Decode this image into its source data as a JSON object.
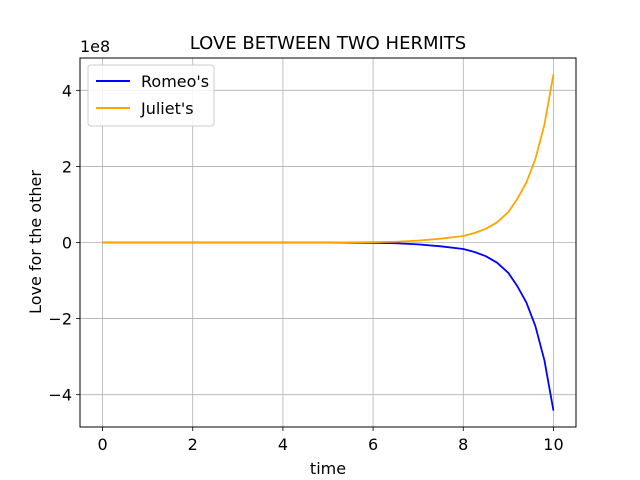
{
  "chart_data": {
    "type": "line",
    "title": "LOVE BETWEEN TWO HERMITS",
    "xlabel": "time",
    "ylabel": "Love for the other",
    "offset_label": "1e8",
    "xlim": [
      -0.5,
      10.5
    ],
    "ylim": [
      -4.85,
      4.85
    ],
    "xticks": [
      0,
      2,
      4,
      6,
      8,
      10
    ],
    "yticks": [
      -4,
      -2,
      0,
      2,
      4
    ],
    "grid": true,
    "legend_position": "top-left",
    "x": [
      0,
      1,
      2,
      3,
      4,
      5,
      6,
      6.5,
      7,
      7.5,
      8,
      8.25,
      8.5,
      8.75,
      9,
      9.2,
      9.4,
      9.6,
      9.8,
      10
    ],
    "series": [
      {
        "name": "Romeo's",
        "color": "#0000ff",
        "values": [
          0,
          -0.0,
          -0.0,
          -0.0,
          -0.0,
          -0.0,
          -0.01,
          -0.02,
          -0.05,
          -0.1,
          -0.17,
          -0.25,
          -0.36,
          -0.53,
          -0.8,
          -1.15,
          -1.58,
          -2.2,
          -3.1,
          -4.42
        ]
      },
      {
        "name": "Juliet's",
        "color": "#ffa500",
        "values": [
          0,
          0.0,
          0.0,
          0.0,
          0.0,
          0.0,
          0.01,
          0.02,
          0.05,
          0.1,
          0.17,
          0.25,
          0.36,
          0.53,
          0.8,
          1.15,
          1.58,
          2.2,
          3.1,
          4.42
        ]
      }
    ]
  }
}
